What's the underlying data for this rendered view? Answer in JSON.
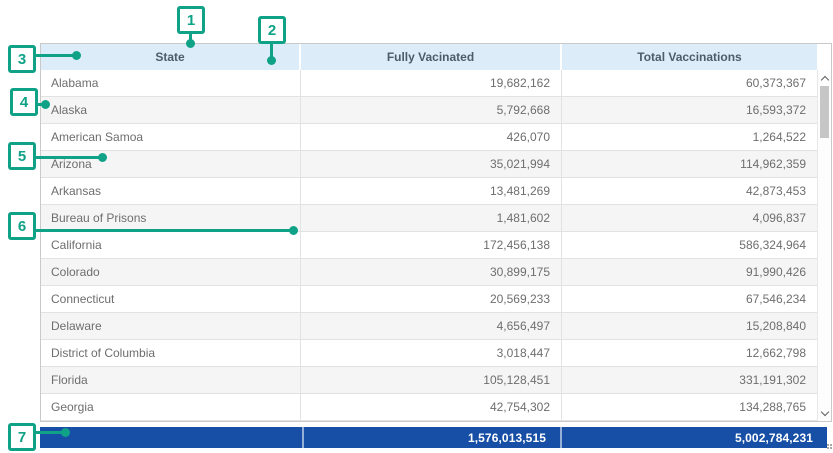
{
  "colors": {
    "accent": "#0FA287",
    "header_bg": "#DCEDF9",
    "header_text": "#4D5D68",
    "body_text": "#6E6E6E",
    "alt_row": "#F5F5F5",
    "row_border": "#E2E2E2",
    "outer_border": "#C9C9C9",
    "footer_bg": "#164FA5",
    "footer_text": "#FFFFFF"
  },
  "callouts": {
    "items": [
      {
        "label": "1"
      },
      {
        "label": "2"
      },
      {
        "label": "3"
      },
      {
        "label": "4"
      },
      {
        "label": "5"
      },
      {
        "label": "6"
      },
      {
        "label": "7"
      }
    ]
  },
  "icons": {
    "scroll_up": "chevron-up",
    "scroll_down": "chevron-down"
  },
  "table": {
    "columns": [
      "State",
      "Fully Vacinated",
      "Total Vaccinations"
    ],
    "rows": [
      [
        "Alabama",
        "19,682,162",
        "60,373,367"
      ],
      [
        "Alaska",
        "5,792,668",
        "16,593,372"
      ],
      [
        "American Samoa",
        "426,070",
        "1,264,522"
      ],
      [
        "Arizona",
        "35,021,994",
        "114,962,359"
      ],
      [
        "Arkansas",
        "13,481,269",
        "42,873,453"
      ],
      [
        "Bureau of Prisons",
        "1,481,602",
        "4,096,837"
      ],
      [
        "California",
        "172,456,138",
        "586,324,964"
      ],
      [
        "Colorado",
        "30,899,175",
        "91,990,426"
      ],
      [
        "Connecticut",
        "20,569,233",
        "67,546,234"
      ],
      [
        "Delaware",
        "4,656,497",
        "15,208,840"
      ],
      [
        "District of Columbia",
        "3,018,447",
        "12,662,798"
      ],
      [
        "Florida",
        "105,128,451",
        "331,191,302"
      ],
      [
        "Georgia",
        "42,754,302",
        "134,288,765"
      ]
    ],
    "totals": [
      "",
      "1,576,013,515",
      "5,002,784,231"
    ]
  }
}
